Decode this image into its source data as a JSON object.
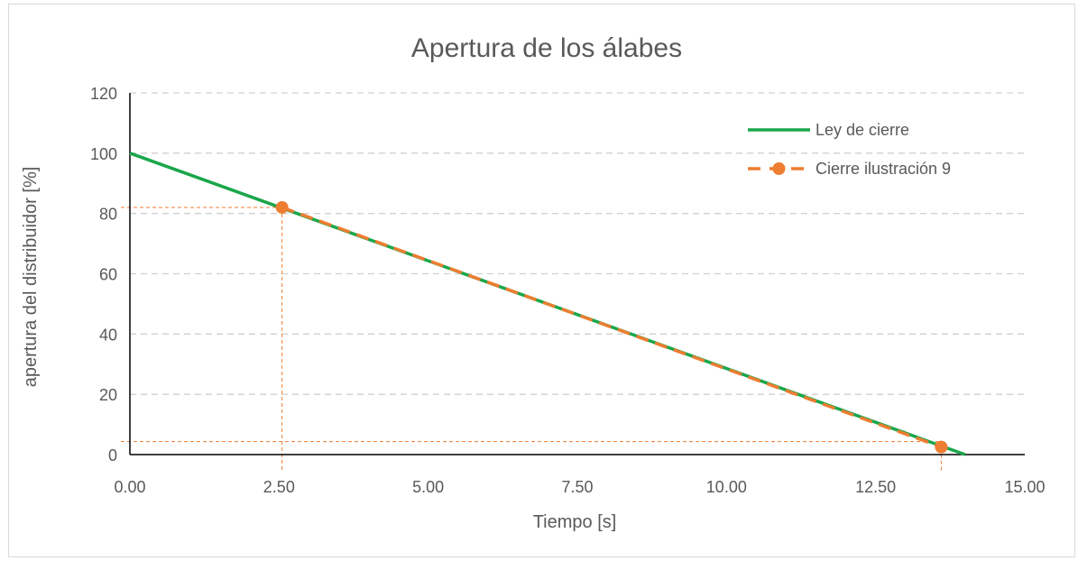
{
  "chart_data": {
    "type": "line",
    "title": "Apertura de los álabes",
    "xlabel": "Tiempo [s]",
    "ylabel": "apertura del distribuidor [%]",
    "xlim": [
      0,
      15
    ],
    "ylim": [
      0,
      120
    ],
    "x_ticks": [
      "0.00",
      "2.50",
      "5.00",
      "7.50",
      "10.00",
      "12.50",
      "15.00"
    ],
    "y_ticks": [
      "0",
      "20",
      "40",
      "60",
      "80",
      "100",
      "120"
    ],
    "grid": "horizontal dashed",
    "legend_position": "top-right",
    "series": [
      {
        "name": "Ley de cierre",
        "style": "solid",
        "color": "#1aa64a",
        "x": [
          0,
          14
        ],
        "y": [
          100,
          0
        ]
      },
      {
        "name": "Cierre ilustración 9",
        "style": "dashed with markers",
        "color": "#ed7d31",
        "x": [
          2.55,
          13.6
        ],
        "y": [
          82,
          2.5
        ]
      }
    ],
    "reference_lines": [
      {
        "orientation": "vertical",
        "x": 2.55,
        "color": "#ed7d31"
      },
      {
        "orientation": "horizontal",
        "y": 82,
        "color": "#ed7d31"
      },
      {
        "orientation": "vertical",
        "x": 13.6,
        "color": "#ed7d31"
      },
      {
        "orientation": "horizontal",
        "y": 4.3,
        "color": "#ed7d31"
      }
    ]
  }
}
